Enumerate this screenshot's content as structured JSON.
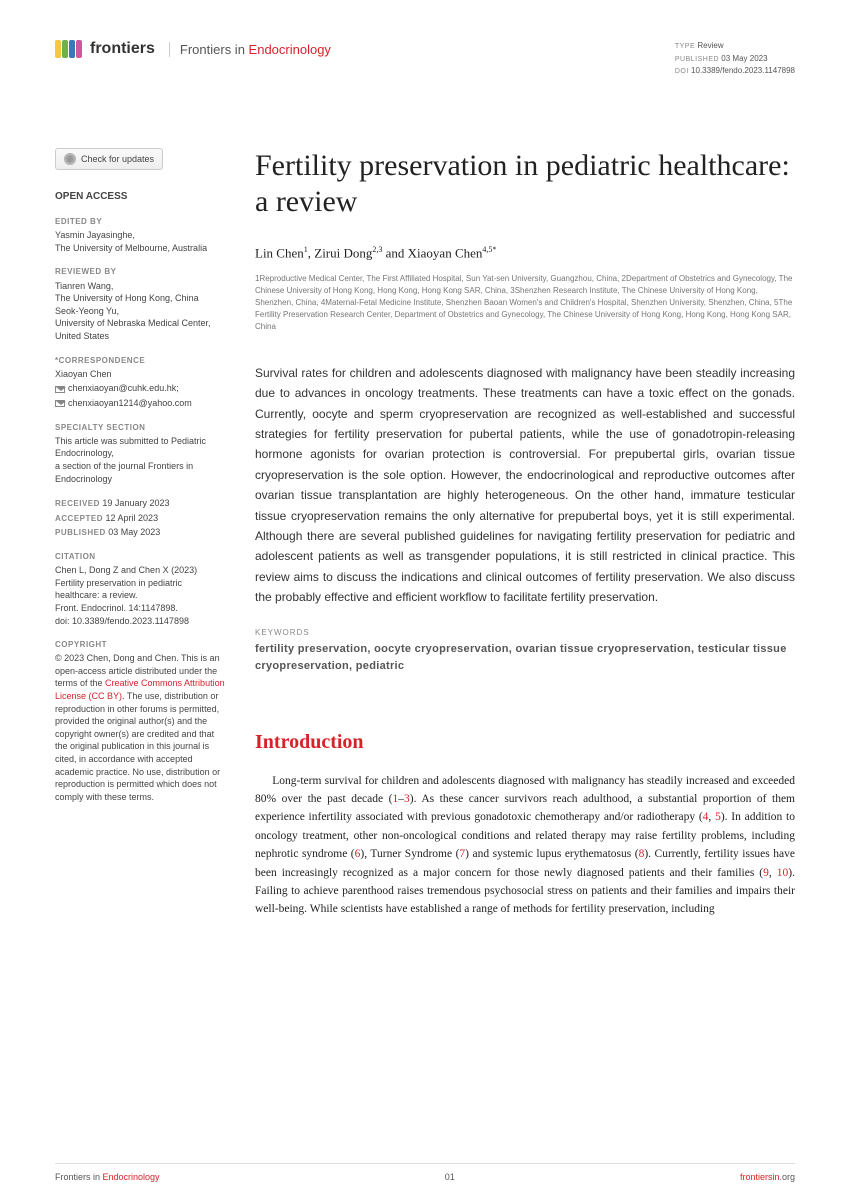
{
  "brand": {
    "name": "frontiers",
    "logo_colors": [
      "#f9c642",
      "#6fb24a",
      "#3b78b5",
      "#d6559a"
    ],
    "journal_prefix": "Frontiers in ",
    "journal_accent": "Endocrinology"
  },
  "meta": {
    "type_label": "TYPE",
    "type_value": "Review",
    "published_label": "PUBLISHED",
    "published_value": "03 May 2023",
    "doi_label": "DOI",
    "doi_value": "10.3389/fendo.2023.1147898"
  },
  "check_updates": "Check for updates",
  "sidebar": {
    "open_access": "OPEN ACCESS",
    "edited_by_label": "EDITED BY",
    "edited_by": "Yasmin Jayasinghe,\nThe University of Melbourne, Australia",
    "reviewed_by_label": "REVIEWED BY",
    "reviewed_by": "Tianren Wang,\nThe University of Hong Kong, China\nSeok-Yeong Yu,\nUniversity of Nebraska Medical Center, United States",
    "correspondence_label": "*CORRESPONDENCE",
    "corr_name": "Xiaoyan Chen",
    "corr_email1": "chenxiaoyan@cuhk.edu.hk;",
    "corr_email2": "chenxiaoyan1214@yahoo.com",
    "specialty_label": "SPECIALTY SECTION",
    "specialty": "This article was submitted to Pediatric Endocrinology,\na section of the journal Frontiers in Endocrinology",
    "received_label": "RECEIVED",
    "received": "19 January 2023",
    "accepted_label": "ACCEPTED",
    "accepted": "12 April 2023",
    "published_label": "PUBLISHED",
    "published": "03 May 2023",
    "citation_label": "CITATION",
    "citation": "Chen L, Dong Z and Chen X (2023) Fertility preservation in pediatric healthcare: a review.\nFront. Endocrinol. 14:1147898.\ndoi: 10.3389/fendo.2023.1147898",
    "copyright_label": "COPYRIGHT",
    "copyright_pre": "© 2023 Chen, Dong and Chen. This is an open-access article distributed under the terms of the ",
    "copyright_link": "Creative Commons Attribution License (CC BY)",
    "copyright_post": ". The use, distribution or reproduction in other forums is permitted, provided the original author(s) and the copyright owner(s) are credited and that the original publication in this journal is cited, in accordance with accepted academic practice. No use, distribution or reproduction is permitted which does not comply with these terms."
  },
  "article": {
    "title": "Fertility preservation in pediatric healthcare: a review",
    "authors_html": "Lin Chen<sup>1</sup>, Zirui Dong<sup>2,3</sup> and Xiaoyan Chen<sup>4,5*</sup>",
    "affiliations": "1Reproductive Medical Center, The First Affiliated Hospital, Sun Yat-sen University, Guangzhou, China, 2Department of Obstetrics and Gynecology, The Chinese University of Hong Kong, Hong Kong, Hong Kong SAR, China, 3Shenzhen Research Institute, The Chinese University of Hong Kong, Shenzhen, China, 4Maternal-Fetal Medicine Institute, Shenzhen Baoan Women's and Children's Hospital, Shenzhen University, Shenzhen, China, 5The Fertility Preservation Research Center, Department of Obstetrics and Gynecology, The Chinese University of Hong Kong, Hong Kong, Hong Kong SAR, China",
    "abstract": "Survival rates for children and adolescents diagnosed with malignancy have been steadily increasing due to advances in oncology treatments. These treatments can have a toxic effect on the gonads. Currently, oocyte and sperm cryopreservation are recognized as well-established and successful strategies for fertility preservation for pubertal patients, while the use of gonadotropin-releasing hormone agonists for ovarian protection is controversial. For prepubertal girls, ovarian tissue cryopreservation is the sole option. However, the endocrinological and reproductive outcomes after ovarian tissue transplantation are highly heterogeneous. On the other hand, immature testicular tissue cryopreservation remains the only alternative for prepubertal boys, yet it is still experimental. Although there are several published guidelines for navigating fertility preservation for pediatric and adolescent patients as well as transgender populations, it is still restricted in clinical practice. This review aims to discuss the indications and clinical outcomes of fertility preservation. We also discuss the probably effective and efficient workflow to facilitate fertility preservation.",
    "keywords_label": "KEYWORDS",
    "keywords": "fertility preservation, oocyte cryopreservation, ovarian tissue cryopreservation, testicular tissue cryopreservation, pediatric",
    "intro_heading": "Introduction",
    "intro_body_pre": "Long-term survival for children and adolescents diagnosed with malignancy has steadily increased and exceeded 80% over the past decade (",
    "intro_cites": [
      "1",
      "–",
      "3",
      "). As these cancer survivors reach adulthood, a substantial proportion of them experience infertility associated with previous gonadotoxic chemotherapy and/or radiotherapy (",
      "4",
      ", ",
      "5",
      "). In addition to oncology treatment, other non-oncological conditions and related therapy may raise fertility problems, including nephrotic syndrome (",
      "6",
      "), Turner Syndrome (",
      "7",
      ") and systemic lupus erythematosus (",
      "8",
      "). Currently, fertility issues have been increasingly recognized as a major concern for those newly diagnosed patients and their families (",
      "9",
      ", ",
      "10",
      "). Failing to achieve parenthood raises tremendous psychosocial stress on patients and their families and impairs their well-being. While scientists have established a range of methods for fertility preservation, including"
    ]
  },
  "footer": {
    "left_prefix": "Frontiers in ",
    "left_accent": "Endocrinology",
    "page": "01",
    "right_accent": "frontiersin",
    "right_suffix": ".org"
  },
  "colors": {
    "accent": "#d6232a",
    "text": "#222222",
    "muted": "#888888"
  }
}
